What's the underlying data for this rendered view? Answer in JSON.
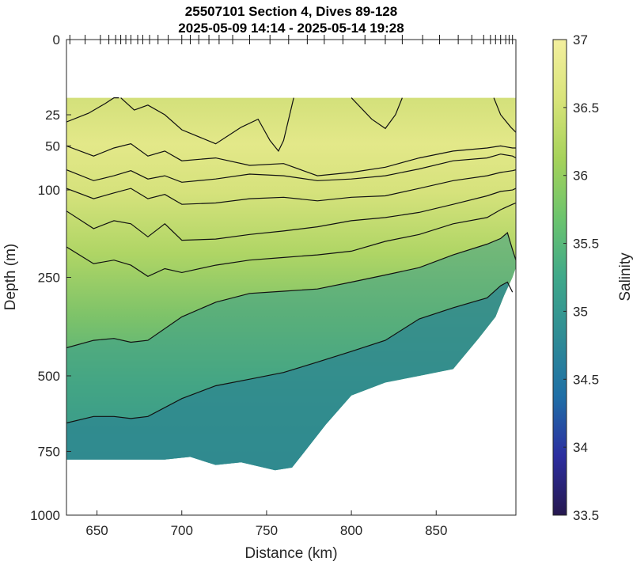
{
  "chart_data": {
    "type": "heatmap",
    "title": "25507101 Section 4, Dives 89-128",
    "subtitle": "2025-05-09 14:14 - 2025-05-14 19:28",
    "xlabel": "Distance (km)",
    "ylabel": "Depth (m)",
    "colorbar_label": "Salinity",
    "xlim": [
      632,
      897
    ],
    "ylim": [
      0,
      1000
    ],
    "y_scale": "sqrt",
    "x_ticks": [
      650,
      700,
      750,
      800,
      850
    ],
    "y_ticks": [
      0,
      25,
      50,
      100,
      250,
      500,
      750,
      1000
    ],
    "colorbar_range": [
      33.5,
      37
    ],
    "colorbar_ticks": [
      33.5,
      34,
      34.5,
      35,
      35.5,
      36,
      36.5,
      37
    ],
    "colormap": [
      "#26184f",
      "#2c2ea0",
      "#1f6fa6",
      "#2f8c95",
      "#3fa88a",
      "#6cc46d",
      "#a6d25a",
      "#d9e47a",
      "#f3ef9e"
    ],
    "data_top_depth": 15,
    "dive_ticks_km": [
      634,
      643,
      652,
      657,
      661,
      664,
      667,
      670,
      674,
      677,
      681,
      686,
      692,
      700,
      705,
      710,
      716,
      722,
      730,
      740,
      752,
      763,
      774,
      784,
      795,
      808,
      820,
      830,
      842,
      852,
      863,
      871,
      878,
      882,
      885,
      888,
      891,
      893,
      895
    ],
    "bottom_boundary": {
      "x": [
        632,
        690,
        705,
        720,
        735,
        755,
        765,
        770,
        785,
        800,
        820,
        840,
        860,
        875,
        885,
        890,
        895,
        897
      ],
      "depth": [
        780,
        780,
        770,
        800,
        790,
        820,
        810,
        770,
        655,
        560,
        520,
        500,
        480,
        395,
        340,
        290,
        250,
        230
      ]
    },
    "contours": [
      {
        "level": 36.5,
        "segments": [
          {
            "x": [
              632,
              645,
              655,
              660,
              663
            ],
            "depth": [
              30,
              24,
              18,
              15,
              15
            ]
          },
          {
            "x": [
              664,
              672,
              680,
              690,
              700,
              720,
              735
            ],
            "depth": [
              15,
              22,
              19,
              25,
              36,
              48,
              34
            ]
          },
          {
            "x": [
              735,
              745,
              752,
              757,
              760,
              766
            ],
            "depth": [
              34,
              28,
              45,
              55,
              45,
              15
            ]
          },
          {
            "x": [
              800,
              812,
              820,
              826,
              830
            ],
            "depth": [
              15,
              28,
              35,
              25,
              15
            ]
          },
          {
            "x": [
              884,
              888,
              894,
              897
            ],
            "depth": [
              15,
              25,
              34,
              38
            ]
          }
        ]
      },
      {
        "level": 36.3,
        "segments": [
          {
            "x": [
              632,
              648,
              660,
              670,
              680,
              690,
              700,
              720,
              740,
              760,
              780,
              800,
              820,
              840,
              860,
              880,
              888,
              895,
              897
            ],
            "depth": [
              50,
              60,
              52,
              48,
              60,
              55,
              65,
              62,
              70,
              68,
              82,
              78,
              72,
              62,
              55,
              52,
              50,
              52,
              52
            ]
          }
        ]
      },
      {
        "level": 36.2,
        "segments": [
          {
            "x": [
              632,
              648,
              660,
              670,
              680,
              690,
              700,
              720,
              740,
              760,
              780,
              800,
              820,
              840,
              860,
              880,
              888,
              895,
              897
            ],
            "depth": [
              75,
              88,
              82,
              76,
              86,
              82,
              90,
              86,
              80,
              82,
              88,
              86,
              82,
              74,
              65,
              62,
              58,
              60,
              62
            ]
          }
        ]
      },
      {
        "level": 36.1,
        "segments": [
          {
            "x": [
              632,
              648,
              660,
              670,
              680,
              690,
              700,
              720,
              740,
              760,
              780,
              800,
              820,
              840,
              860,
              880,
              888,
              895,
              897
            ],
            "depth": [
              98,
              112,
              104,
              98,
              112,
              106,
              120,
              118,
              112,
              110,
              115,
              110,
              108,
              98,
              88,
              82,
              78,
              76,
              75
            ]
          }
        ]
      },
      {
        "level": 36.0,
        "segments": [
          {
            "x": [
              632,
              648,
              660,
              670,
              680,
              690,
              700,
              720,
              740,
              760,
              780,
              800,
              820,
              840,
              860,
              880,
              888,
              895,
              897
            ],
            "depth": [
              130,
              158,
              145,
              150,
              172,
              150,
              178,
              176,
              168,
              162,
              155,
              145,
              140,
              132,
              120,
              108,
              102,
              100,
              98
            ]
          }
        ]
      },
      {
        "level": 35.9,
        "segments": [
          {
            "x": [
              632,
              648,
              660,
              670,
              680,
              690,
              700,
              720,
              740,
              760,
              780,
              800,
              820,
              840,
              860,
              880,
              888,
              895,
              897
            ],
            "depth": [
              190,
              222,
              215,
              225,
              248,
              232,
              240,
              225,
              215,
              210,
              205,
              198,
              180,
              168,
              150,
              140,
              128,
              120,
              118
            ]
          }
        ]
      },
      {
        "level": 35.7,
        "segments": [
          {
            "x": [
              632,
              648,
              660,
              670,
              680,
              700,
              720,
              740,
              760,
              780,
              800,
              820,
              840,
              860,
              880,
              888,
              892,
              895,
              897
            ],
            "depth": [
              420,
              400,
              395,
              405,
              400,
              340,
              305,
              285,
              280,
              275,
              260,
              245,
              230,
              205,
              185,
              175,
              165,
              195,
              215
            ]
          }
        ]
      },
      {
        "level": 35.5,
        "segments": [
          {
            "x": [
              632,
              648,
              660,
              670,
              680,
              700,
              720,
              740,
              760,
              780,
              800,
              820,
              840,
              860,
              880,
              888,
              892,
              895
            ],
            "depth": [
              650,
              628,
              628,
              635,
              628,
              570,
              530,
              510,
              490,
              460,
              430,
              400,
              345,
              318,
              295,
              268,
              260,
              282
            ]
          }
        ]
      }
    ]
  }
}
